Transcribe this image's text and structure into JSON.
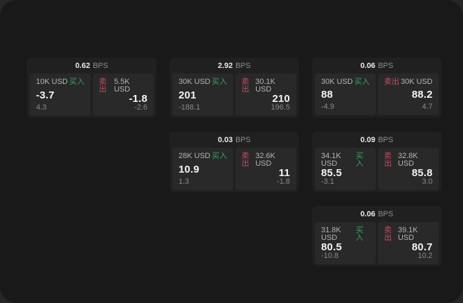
{
  "labels": {
    "unit": "BPS",
    "buy": "买入",
    "sell": "卖出"
  },
  "colors": {
    "outer_background": "#272727",
    "window_background": "#191919",
    "card_background": "#202020",
    "panel_background": "#292929",
    "buy_green": "#3f9e63",
    "sell_red": "#c04f63",
    "price_text": "#f5f5f5",
    "muted_text": "#8a8a8a"
  },
  "cards": [
    {
      "col": 1,
      "row": 1,
      "spread_bps": "0.62",
      "buy": {
        "notional": "10K USD",
        "price": "-3.7",
        "delta": "4.3"
      },
      "sell": {
        "notional": "5.5K USD",
        "price": "-1.8",
        "delta": "-2.6"
      }
    },
    {
      "col": 2,
      "row": 1,
      "spread_bps": "2.92",
      "buy": {
        "notional": "30K USD",
        "price": "201",
        "delta": "-188.1"
      },
      "sell": {
        "notional": "30.1K USD",
        "price": "210",
        "delta": "196.5"
      }
    },
    {
      "col": 3,
      "row": 1,
      "spread_bps": "0.06",
      "buy": {
        "notional": "30K USD",
        "price": "88",
        "delta": "-4.9"
      },
      "sell": {
        "notional": "30K USD",
        "price": "88.2",
        "delta": "4.7"
      }
    },
    {
      "col": 2,
      "row": 2,
      "spread_bps": "0.03",
      "buy": {
        "notional": "28K USD",
        "price": "10.9",
        "delta": "1.3"
      },
      "sell": {
        "notional": "32.6K USD",
        "price": "11",
        "delta": "-1.8"
      }
    },
    {
      "col": 3,
      "row": 2,
      "spread_bps": "0.09",
      "buy": {
        "notional": "34.1K USD",
        "price": "85.5",
        "delta": "-3.1"
      },
      "sell": {
        "notional": "32.8K USD",
        "price": "85.8",
        "delta": "3.0"
      }
    },
    {
      "col": 3,
      "row": 3,
      "spread_bps": "0.06",
      "buy": {
        "notional": "31.8K USD",
        "price": "80.5",
        "delta": "-10.8"
      },
      "sell": {
        "notional": "39.1K USD",
        "price": "80.7",
        "delta": "10.2"
      }
    }
  ]
}
